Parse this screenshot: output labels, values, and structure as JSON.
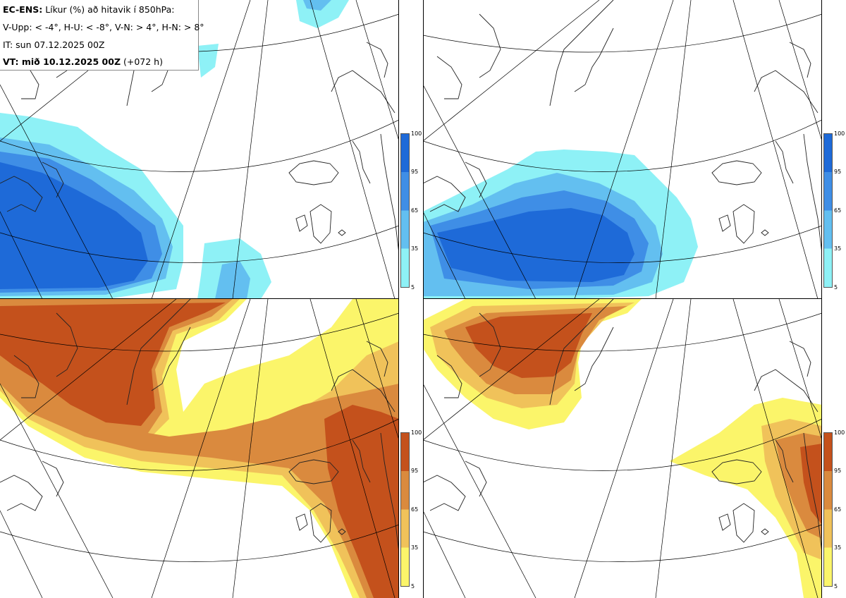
{
  "header": {
    "model": "EC-ENS:",
    "title": "Líkur (%) að hitavik í 850hPa:",
    "legend_line": "V-Upp: < -4°, H-U: < -8°, V-N: > 4°, H-N: > 8°",
    "init_time": "IT: sun 07.12.2025 00Z",
    "valid_label": "VT: mið 10.12.2025 00Z",
    "lead_time": "(+072 h)"
  },
  "panels": [
    {
      "id": "v-upp",
      "scheme": "cold"
    },
    {
      "id": "h-u",
      "scheme": "cold"
    },
    {
      "id": "v-n",
      "scheme": "warm"
    },
    {
      "id": "h-n",
      "scheme": "warm"
    }
  ],
  "colorbar": {
    "ticks": [
      "100",
      "95",
      "65",
      "35",
      "5"
    ],
    "cold_colors": [
      "#1e6ad8",
      "#3f8ee6",
      "#63bff0",
      "#8ef1f6"
    ],
    "warm_colors": [
      "#c4511c",
      "#da8a3e",
      "#f0c25a",
      "#fbf56a"
    ]
  },
  "colors": {
    "coastline": "#222222",
    "gridline": "#000000",
    "background": "#ffffff"
  }
}
